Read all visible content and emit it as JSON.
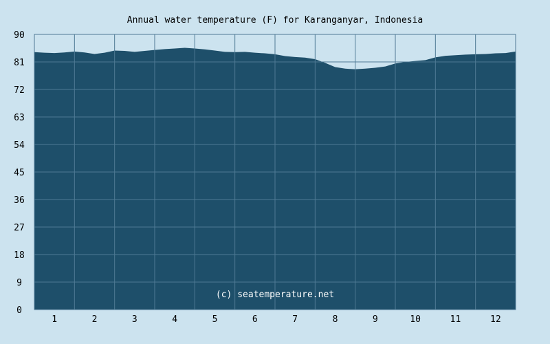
{
  "chart_data": {
    "type": "area",
    "title": "Annual water temperature (F) for Karanganyar, Indonesia",
    "watermark": "(c) seatemperature.net",
    "xlabel": "",
    "ylabel": "",
    "ylim": [
      0,
      90
    ],
    "xlim": [
      0.5,
      12.5
    ],
    "yticks": [
      "0",
      "9",
      "18",
      "27",
      "36",
      "45",
      "54",
      "63",
      "72",
      "81",
      "90"
    ],
    "xticks": [
      "1",
      "2",
      "3",
      "4",
      "5",
      "6",
      "7",
      "8",
      "9",
      "10",
      "11",
      "12"
    ],
    "grid": true,
    "legend": "none",
    "colors": {
      "background": "#cce3ef",
      "fill": "#1e4f6a",
      "grid": "#4f7a94",
      "text": "#000000",
      "watermark": "#ffffff"
    },
    "series": [
      {
        "x": [
          0.5,
          0.75,
          1.0,
          1.25,
          1.5,
          1.75,
          2.0,
          2.25,
          2.5,
          2.75,
          3.0,
          3.25,
          3.5,
          3.75,
          4.0,
          4.25,
          4.5,
          4.75,
          5.0,
          5.25,
          5.5,
          5.75,
          6.0,
          6.25,
          6.5,
          6.75,
          7.0,
          7.25,
          7.5,
          7.75,
          8.0,
          8.25,
          8.5,
          8.75,
          9.0,
          9.25,
          9.5,
          9.75,
          10.0,
          10.25,
          10.5,
          10.75,
          11.0,
          11.25,
          11.5,
          11.75,
          12.0,
          12.25,
          12.5
        ],
        "values": [
          84.2,
          84.0,
          83.9,
          84.1,
          84.4,
          84.1,
          83.6,
          84.0,
          84.7,
          84.6,
          84.3,
          84.6,
          84.9,
          85.2,
          85.4,
          85.6,
          85.4,
          85.1,
          84.7,
          84.3,
          84.2,
          84.3,
          84.0,
          83.8,
          83.5,
          82.9,
          82.6,
          82.4,
          81.9,
          80.7,
          79.3,
          78.8,
          78.6,
          78.8,
          79.1,
          79.5,
          80.5,
          81.0,
          81.3,
          81.6,
          82.5,
          83.0,
          83.2,
          83.4,
          83.5,
          83.6,
          83.8,
          83.9,
          84.4
        ]
      }
    ]
  }
}
